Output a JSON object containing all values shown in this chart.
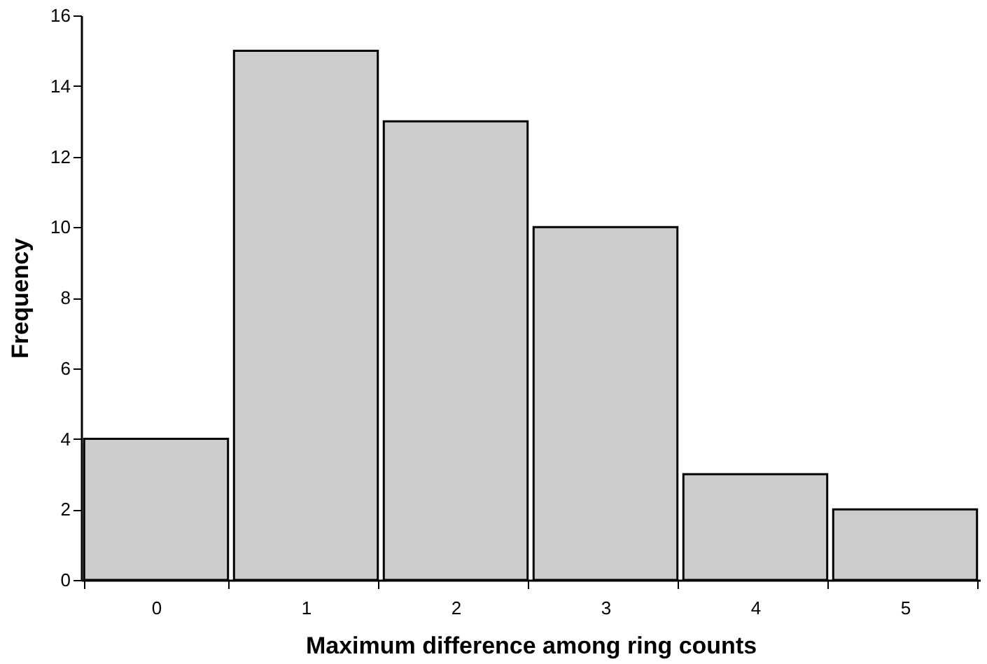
{
  "chart_data": {
    "type": "bar",
    "xlabel": "Maximum difference among ring counts",
    "ylabel": "Frequency",
    "categories": [
      "0",
      "1",
      "2",
      "3",
      "4",
      "5"
    ],
    "values": [
      4,
      15,
      13,
      10,
      3,
      2
    ],
    "color": "#cccccc",
    "ylim": [
      0,
      16
    ],
    "yticks": [
      0,
      2,
      4,
      6,
      8,
      10,
      12,
      14,
      16
    ],
    "grid": false
  }
}
